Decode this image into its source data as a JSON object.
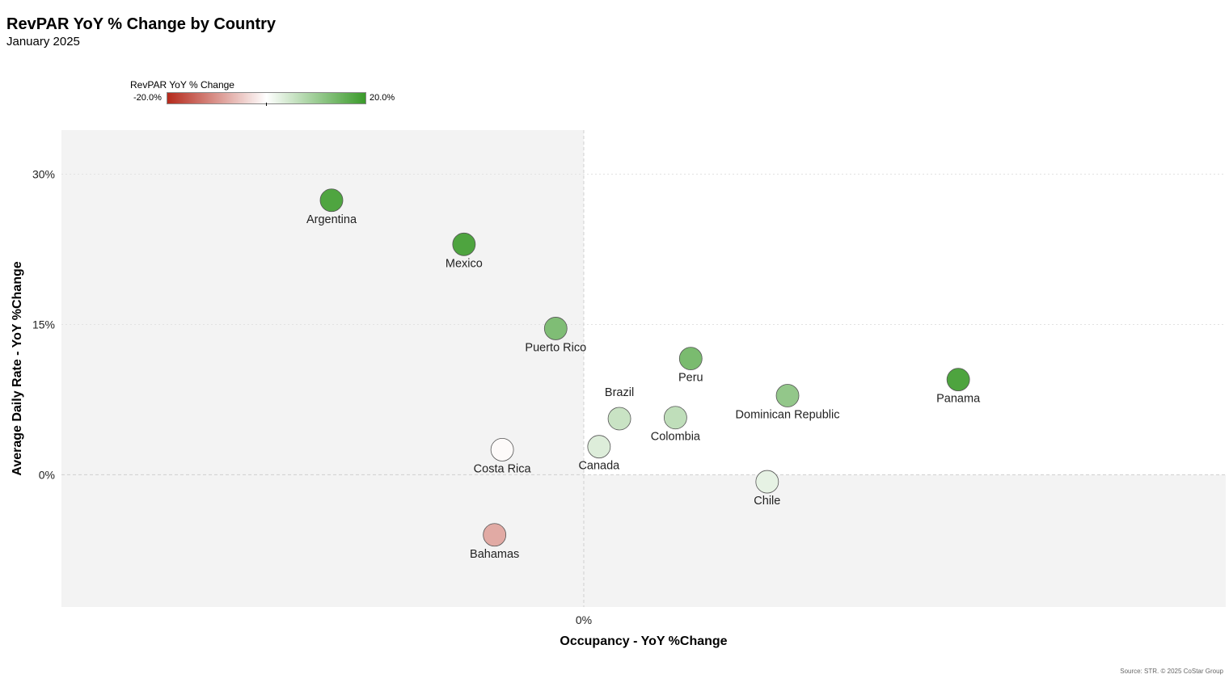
{
  "header": {
    "title": "RevPAR YoY % Change by Country",
    "subtitle": "January 2025"
  },
  "legend": {
    "title": "RevPAR YoY % Change",
    "min_label": "-20.0%",
    "max_label": "20.0%",
    "colors": {
      "negative": "#b52a1c",
      "neutral": "#ffffff",
      "positive": "#3a9a2a"
    }
  },
  "footer": {
    "source": "Source: STR. © 2025 CoStar Group"
  },
  "chart_data": {
    "type": "scatter",
    "title": "RevPAR YoY % Change by Country",
    "subtitle": "January 2025",
    "xlabel": "Occupancy - YoY %Change",
    "ylabel": "Average Daily Rate - YoY %Change",
    "xlim": [
      -20.5,
      25.2
    ],
    "ylim": [
      -13.2,
      34.4
    ],
    "x_ticks": [
      {
        "value": 0,
        "label": "0%"
      }
    ],
    "y_ticks": [
      {
        "value": 0,
        "label": "0%"
      },
      {
        "value": 15,
        "label": "15%"
      },
      {
        "value": 30,
        "label": "30%"
      }
    ],
    "color_scale": {
      "name": "RevPAR YoY % Change",
      "min": -20,
      "max": 20
    },
    "points": [
      {
        "name": "Argentina",
        "x": -9.9,
        "y": 27.4,
        "revpar": 17.9,
        "label_pos": "below"
      },
      {
        "name": "Mexico",
        "x": -4.7,
        "y": 23.0,
        "revpar": 18.0,
        "label_pos": "below"
      },
      {
        "name": "Puerto Rico",
        "x": -1.1,
        "y": 14.6,
        "revpar": 13.0,
        "label_pos": "below"
      },
      {
        "name": "Peru",
        "x": 4.2,
        "y": 11.6,
        "revpar": 13.5,
        "label_pos": "below"
      },
      {
        "name": "Panama",
        "x": 14.7,
        "y": 9.5,
        "revpar": 18.0,
        "label_pos": "below"
      },
      {
        "name": "Dominican Republic",
        "x": 8.0,
        "y": 7.9,
        "revpar": 11.0,
        "label_pos": "below"
      },
      {
        "name": "Brazil",
        "x": 1.4,
        "y": 5.6,
        "revpar": 5.5,
        "label_pos": "above"
      },
      {
        "name": "Colombia",
        "x": 3.6,
        "y": 5.7,
        "revpar": 6.5,
        "label_pos": "below"
      },
      {
        "name": "Canada",
        "x": 0.6,
        "y": 2.8,
        "revpar": 3.5,
        "label_pos": "below"
      },
      {
        "name": "Costa Rica",
        "x": -3.2,
        "y": 2.5,
        "revpar": -0.5,
        "label_pos": "below"
      },
      {
        "name": "Chile",
        "x": 7.2,
        "y": -0.7,
        "revpar": 2.5,
        "label_pos": "below"
      },
      {
        "name": "Bahamas",
        "x": -3.5,
        "y": -6.0,
        "revpar": -8.0,
        "label_pos": "below"
      }
    ]
  }
}
